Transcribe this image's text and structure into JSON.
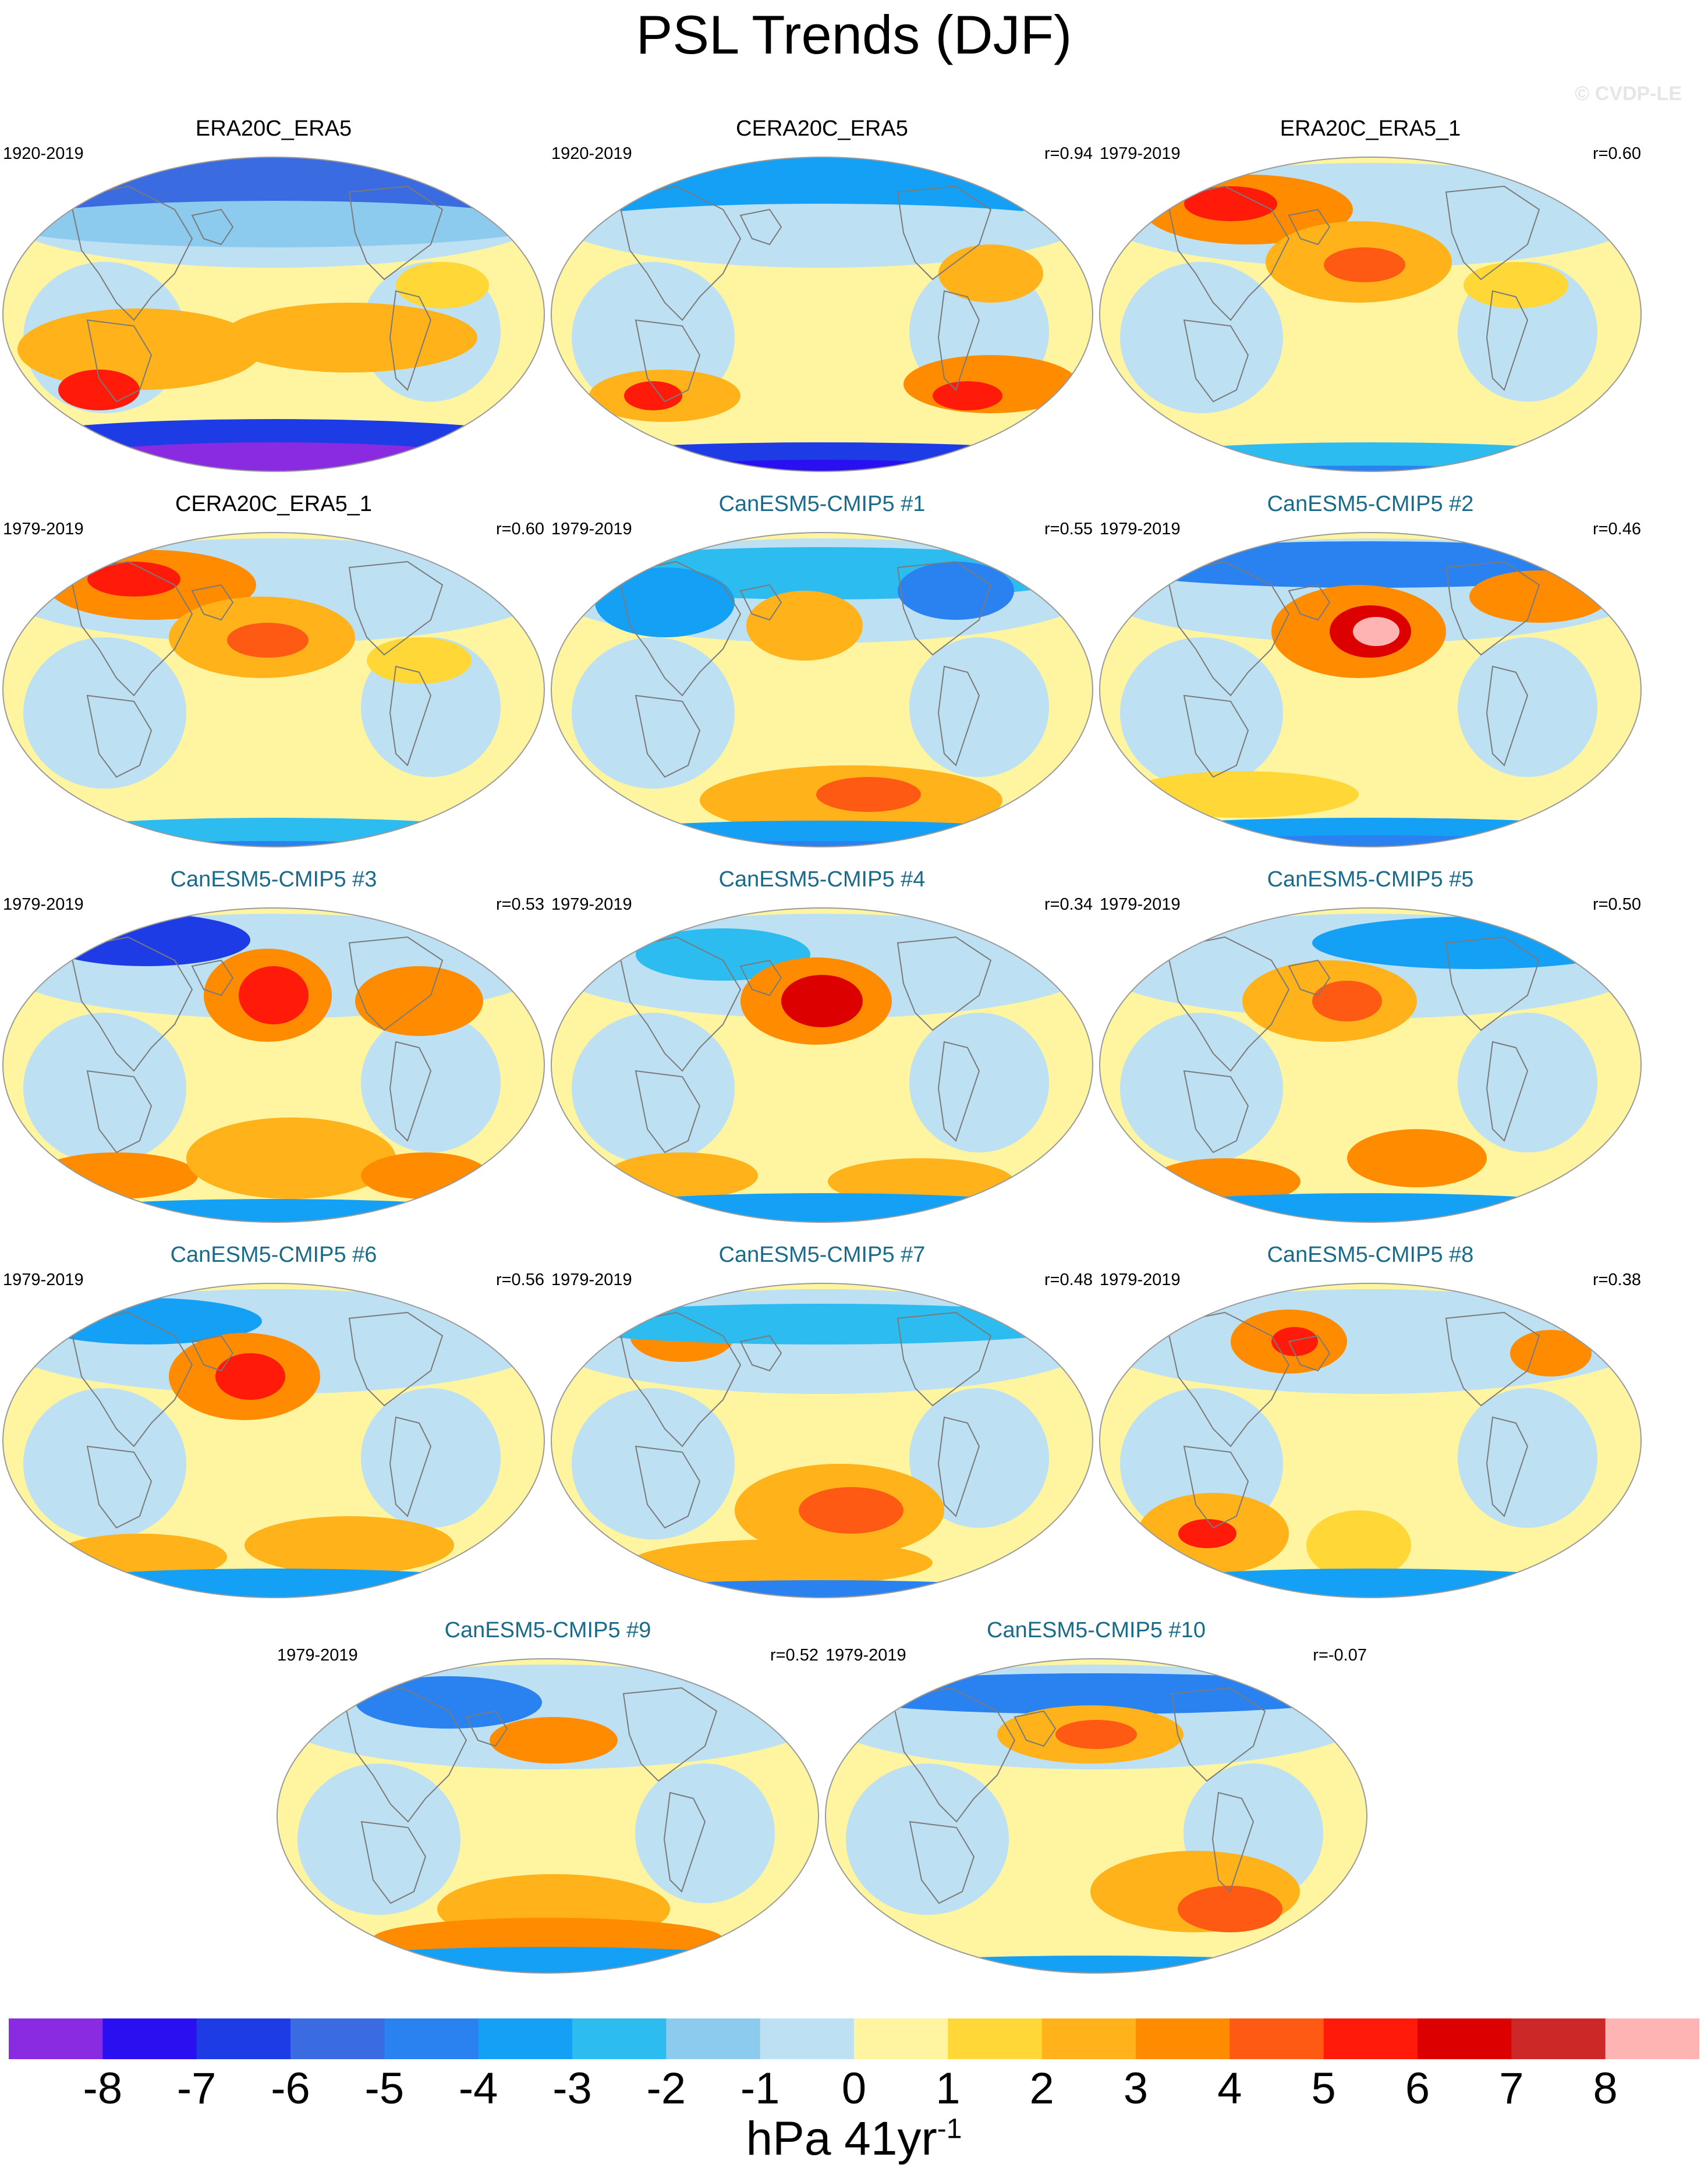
{
  "title": "PSL Trends (DJF)",
  "watermark": "© CVDP-LE",
  "colors": {
    "land_outline": "#7a7a7a",
    "model_title": "#1a6b8a",
    "palette": [
      "#8a2be2",
      "#2a10f0",
      "#1e3ce6",
      "#3a6be0",
      "#2a82f0",
      "#14a0f4",
      "#2cbcf0",
      "#8ccaee",
      "#bde0f2",
      "#fff5a0",
      "#ffd838",
      "#ffb21a",
      "#ff8c00",
      "#ff5a14",
      "#ff1a0a",
      "#dd0000",
      "#cc2828",
      "#ffb4b4"
    ]
  },
  "colorbar": {
    "labels": [
      "-8",
      "-7",
      "-6",
      "-5",
      "-4",
      "-3",
      "-2",
      "-1",
      "0",
      "1",
      "2",
      "3",
      "4",
      "5",
      "6",
      "7",
      "8"
    ],
    "units_main": "hPa 41yr",
    "units_sup": "-1"
  },
  "panels": [
    {
      "title": "ERA20C_ERA5",
      "years": "1920-2019",
      "r": "",
      "kind": "obs"
    },
    {
      "title": "CERA20C_ERA5",
      "years": "1920-2019",
      "r": "r=0.94",
      "kind": "obs"
    },
    {
      "title": "ERA20C_ERA5_1",
      "years": "1979-2019",
      "r": "r=0.60",
      "kind": "obs"
    },
    {
      "title": "CERA20C_ERA5_1",
      "years": "1979-2019",
      "r": "r=0.60",
      "kind": "obs"
    },
    {
      "title": "CanESM5-CMIP5 #1",
      "years": "1979-2019",
      "r": "r=0.55",
      "kind": "model"
    },
    {
      "title": "CanESM5-CMIP5 #2",
      "years": "1979-2019",
      "r": "r=0.46",
      "kind": "model"
    },
    {
      "title": "CanESM5-CMIP5 #3",
      "years": "1979-2019",
      "r": "r=0.53",
      "kind": "model"
    },
    {
      "title": "CanESM5-CMIP5 #4",
      "years": "1979-2019",
      "r": "r=0.34",
      "kind": "model"
    },
    {
      "title": "CanESM5-CMIP5 #5",
      "years": "1979-2019",
      "r": "r=0.50",
      "kind": "model"
    },
    {
      "title": "CanESM5-CMIP5 #6",
      "years": "1979-2019",
      "r": "r=0.56",
      "kind": "model"
    },
    {
      "title": "CanESM5-CMIP5 #7",
      "years": "1979-2019",
      "r": "r=0.48",
      "kind": "model"
    },
    {
      "title": "CanESM5-CMIP5 #8",
      "years": "1979-2019",
      "r": "r=0.38",
      "kind": "model"
    },
    {
      "title": "CanESM5-CMIP5 #9",
      "years": "1979-2019",
      "r": "r=0.52",
      "kind": "model"
    },
    {
      "title": "CanESM5-CMIP5 #10",
      "years": "1979-2019",
      "r": "r=-0.07",
      "kind": "model"
    }
  ]
}
